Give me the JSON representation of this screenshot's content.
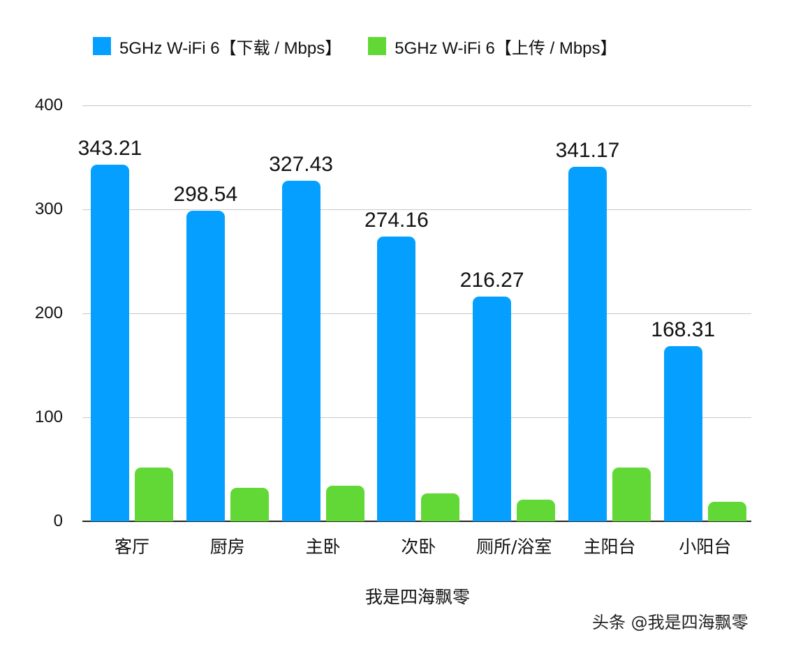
{
  "chart_data": {
    "type": "bar",
    "title": "",
    "categories": [
      "客厅",
      "厨房",
      "主卧",
      "次卧",
      "厕所/浴室",
      "主阳台",
      "小阳台"
    ],
    "series": [
      {
        "name": "5GHz W-iFi 6【下载 / Mbps】",
        "color": "#05a0ff",
        "values": [
          343.21,
          298.54,
          327.43,
          274.16,
          216.27,
          341.17,
          168.31
        ],
        "labels_shown": true
      },
      {
        "name": "5GHz W-iFi 6【上传 / Mbps】",
        "color": "#62d836",
        "values": [
          52,
          32,
          34,
          27,
          21,
          52,
          19
        ],
        "labels_shown": false
      }
    ],
    "xlabel": "我是四海飘零",
    "ylabel": "",
    "ylim": [
      0,
      400
    ],
    "yticks": [
      0,
      100,
      200,
      300,
      400
    ],
    "grid": true,
    "legend_position": "top"
  },
  "legend": [
    {
      "label": "5GHz W-iFi 6【下载 / Mbps】",
      "color": "#05a0ff"
    },
    {
      "label": "5GHz W-iFi 6【上传 / Mbps】",
      "color": "#62d836"
    }
  ],
  "yticks": [
    "0",
    "100",
    "200",
    "300",
    "400"
  ],
  "value_labels": [
    "343.21",
    "298.54",
    "327.43",
    "274.16",
    "216.27",
    "341.17",
    "168.31"
  ],
  "xtick_labels": [
    "客厅",
    "厨房",
    "主卧",
    "次卧",
    "厕所/浴室",
    "主阳台",
    "小阳台"
  ],
  "xlabel": "我是四海飘零",
  "watermark": "头条 @我是四海飘零"
}
